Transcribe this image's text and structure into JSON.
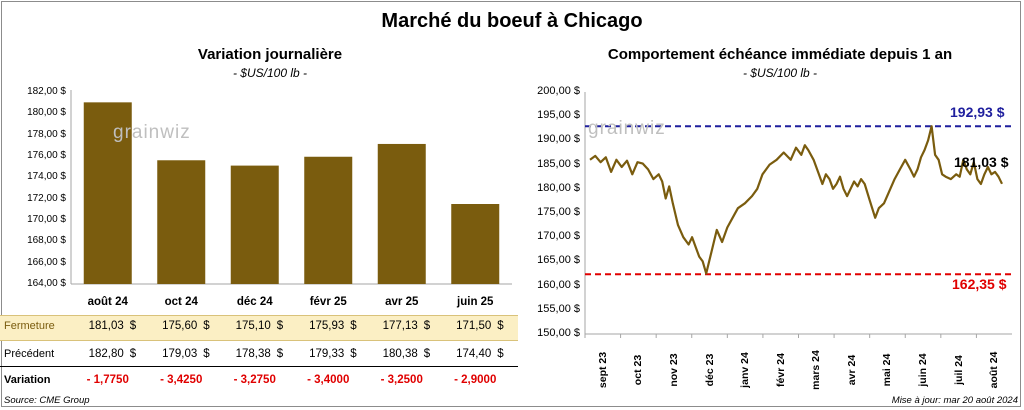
{
  "title": "Marché du boeuf à Chicago",
  "left_panel": {
    "title": "Variation  journalière",
    "unit": "- $US/100 lb -",
    "watermark": "grainwiz",
    "y_ticks": [
      "182,00 $",
      "180,00 $",
      "178,00 $",
      "176,00 $",
      "174,00 $",
      "172,00 $",
      "170,00 $",
      "168,00 $",
      "166,00 $",
      "164,00 $"
    ],
    "table": {
      "row_labels": {
        "fermeture": "Fermeture",
        "precedent": "Précédent",
        "variation": "Variation"
      },
      "currency": "$",
      "fermeture": [
        "181,03",
        "175,60",
        "175,10",
        "175,93",
        "177,13",
        "171,50"
      ],
      "precedent": [
        "182,80",
        "179,03",
        "178,38",
        "179,33",
        "180,38",
        "174,40"
      ],
      "variation": [
        "- 1,7750",
        "- 3,4250",
        "- 3,2750",
        "- 3,4000",
        "- 3,2500",
        "- 2,9000"
      ]
    }
  },
  "right_panel": {
    "title": "Comportement  échéance immédiate depuis 1 an",
    "unit": "- $US/100 lb -",
    "watermark": "grainwiz",
    "y_ticks": [
      "200,00 $",
      "195,00 $",
      "190,00 $",
      "185,00 $",
      "180,00 $",
      "175,00 $",
      "170,00 $",
      "165,00 $",
      "160,00 $",
      "155,00 $",
      "150,00 $"
    ],
    "x_ticks": [
      "sept 23",
      "oct 23",
      "nov 23",
      "déc 23",
      "janv 24",
      "févr 24",
      "mars 24",
      "avr 24",
      "mai 24",
      "juin 24",
      "juil 24",
      "août 24"
    ],
    "max_label": "192,93 $",
    "min_label": "162,35 $",
    "last_label": "181,03 $"
  },
  "footer": {
    "source": "Source: CME Group",
    "updated": "Mise à jour: mar 20 août 2024"
  },
  "colors": {
    "bar": "#7a5c0e",
    "line": "#7a5c0e",
    "max_line": "#1f1f9e",
    "min_line": "#e00000",
    "highlight_row": "#fbefc4"
  },
  "chart_data": [
    {
      "type": "bar",
      "title": "Variation  journalière",
      "ylabel": "- $US/100 lb -",
      "categories": [
        "août 24",
        "oct 24",
        "déc 24",
        "févr 25",
        "avr 25",
        "juin 25"
      ],
      "values": [
        181.03,
        175.6,
        175.1,
        175.93,
        177.13,
        171.5
      ],
      "ylim": [
        164,
        182
      ],
      "grid": false
    },
    {
      "type": "line",
      "title": "Comportement  échéance immédiate depuis 1 an",
      "ylabel": "- $US/100 lb -",
      "x_range": [
        "sept 23",
        "août 24"
      ],
      "ylim": [
        150,
        200
      ],
      "x": [
        0,
        0.15,
        0.3,
        0.45,
        0.6,
        0.75,
        0.9,
        1.05,
        1.2,
        1.35,
        1.5,
        1.65,
        1.8,
        1.95,
        2.05,
        2.15,
        2.25,
        2.35,
        2.5,
        2.65,
        2.8,
        2.9,
        3.0,
        3.1,
        3.2,
        3.3,
        3.45,
        3.6,
        3.75,
        3.9,
        4.05,
        4.2,
        4.4,
        4.6,
        4.75,
        4.9,
        5.1,
        5.3,
        5.5,
        5.7,
        5.85,
        6.0,
        6.1,
        6.2,
        6.35,
        6.5,
        6.6,
        6.7,
        6.8,
        6.9,
        7.0,
        7.1,
        7.2,
        7.3,
        7.4,
        7.5,
        7.6,
        7.7,
        7.8,
        7.95,
        8.1,
        8.2,
        8.35,
        8.5,
        8.65,
        8.8,
        8.95,
        9.1,
        9.2,
        9.3,
        9.4,
        9.5,
        9.6,
        9.7,
        9.8,
        9.9,
        10.0,
        10.1,
        10.25,
        10.4,
        10.5,
        10.6,
        10.7,
        10.8,
        10.9,
        11.0,
        11.1,
        11.2,
        11.3,
        11.4,
        11.5,
        11.6,
        11.7
      ],
      "y": [
        186,
        186.8,
        185.5,
        186.5,
        183.5,
        186,
        184.5,
        185.8,
        183,
        185.5,
        185.2,
        184,
        182,
        183,
        181.5,
        178,
        180.5,
        177,
        172.5,
        170,
        168.5,
        170,
        168,
        166,
        165,
        162.5,
        167,
        171.5,
        169,
        172,
        174,
        176,
        177,
        178.5,
        180,
        183,
        185,
        186,
        187.5,
        186,
        188.5,
        187,
        189,
        188,
        186,
        183,
        181,
        183,
        182,
        180,
        181,
        182.5,
        180,
        178.5,
        180,
        181.5,
        180.5,
        182,
        181,
        177.5,
        174,
        176,
        177,
        179.5,
        182,
        184,
        186,
        184,
        182.5,
        184,
        186.5,
        188,
        190,
        192.93,
        187,
        186,
        183,
        182.5,
        182,
        183,
        182.5,
        186,
        184,
        183,
        185.5,
        182,
        181,
        183,
        184.5,
        183,
        183.5,
        182.5,
        181.03
      ],
      "series": [
        {
          "values_ref": "y"
        }
      ],
      "reference_lines": [
        {
          "value": 192.93,
          "label": "192,93 $",
          "color": "#1f1f9e"
        },
        {
          "value": 162.35,
          "label": "162,35 $",
          "color": "#e00000"
        }
      ],
      "grid": false
    }
  ]
}
